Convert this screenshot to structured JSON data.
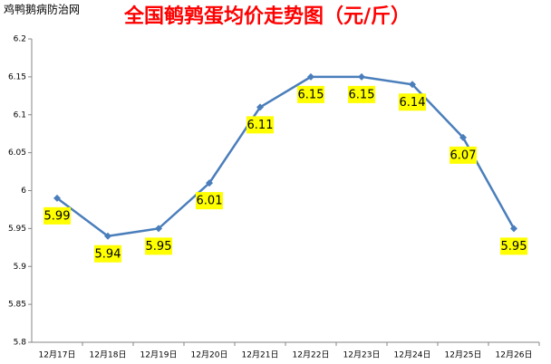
{
  "watermark": "鸡鸭鹅病防治网",
  "chart_data": {
    "type": "line",
    "title": "全国鹌鹑蛋均价走势图（元/斤）",
    "categories": [
      "12月17日",
      "12月18日",
      "12月19日",
      "12月20日",
      "12月21日",
      "12月22日",
      "12月23日",
      "12月24日",
      "12月25日",
      "12月26日"
    ],
    "series": [
      {
        "color": "#4a7ebb",
        "values": [
          5.99,
          5.94,
          5.95,
          6.01,
          6.11,
          6.15,
          6.15,
          6.14,
          6.07,
          5.95
        ]
      }
    ],
    "ylim": [
      5.8,
      6.2
    ],
    "yticks": [
      5.8,
      5.85,
      5.9,
      5.95,
      6,
      6.05,
      6.1,
      6.15,
      6.2
    ],
    "label_color": "#ffff00",
    "grid": false
  }
}
